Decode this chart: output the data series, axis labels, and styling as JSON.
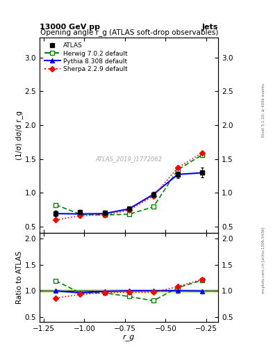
{
  "title": "Opening angle r_g (ATLAS soft-drop observables)",
  "top_left_label": "13000 GeV pp",
  "top_right_label": "Jets",
  "right_label_top": "Rivet 3.1.10, ≥ 400k events",
  "right_label_bottom": "mcplots.cern.ch [arXiv:1306.3436]",
  "watermark": "ATLAS_2019_I1772062",
  "ylabel_main": "(1/σ) dσ/d r_g",
  "ylabel_ratio": "Ratio to ATLAS",
  "xlabel": "r_g",
  "x_values": [
    -1.175,
    -1.025,
    -0.875,
    -0.725,
    -0.575,
    -0.425,
    -0.275
  ],
  "atlas_y": [
    0.69,
    0.71,
    0.7,
    0.76,
    0.975,
    1.265,
    1.3
  ],
  "atlas_yerr": [
    0.04,
    0.03,
    0.03,
    0.03,
    0.04,
    0.05,
    0.07
  ],
  "herwig_y": [
    0.82,
    0.68,
    0.67,
    0.68,
    0.79,
    1.34,
    1.56
  ],
  "pythia_y": [
    0.69,
    0.685,
    0.69,
    0.76,
    0.975,
    1.27,
    1.295
  ],
  "sherpa_y": [
    0.595,
    0.66,
    0.67,
    0.74,
    0.95,
    1.37,
    1.59
  ],
  "herwig_ratio": [
    1.19,
    0.96,
    0.96,
    0.89,
    0.81,
    1.06,
    1.2
  ],
  "pythia_ratio": [
    1.0,
    0.96,
    0.99,
    1.0,
    1.0,
    1.0,
    0.995
  ],
  "sherpa_ratio": [
    0.86,
    0.93,
    0.96,
    0.97,
    0.97,
    1.08,
    1.22
  ],
  "atlas_band_lo": 0.97,
  "atlas_band_hi": 1.03,
  "ylim_main": [
    0.4,
    3.3
  ],
  "ylim_ratio": [
    0.4,
    2.1
  ],
  "xlim": [
    -1.275,
    -0.175
  ],
  "atlas_color": "#000000",
  "herwig_color": "#008000",
  "pythia_color": "#0000ff",
  "sherpa_color": "#ff0000",
  "band_yellow": "#ffffaa",
  "band_green": "#aaffaa"
}
